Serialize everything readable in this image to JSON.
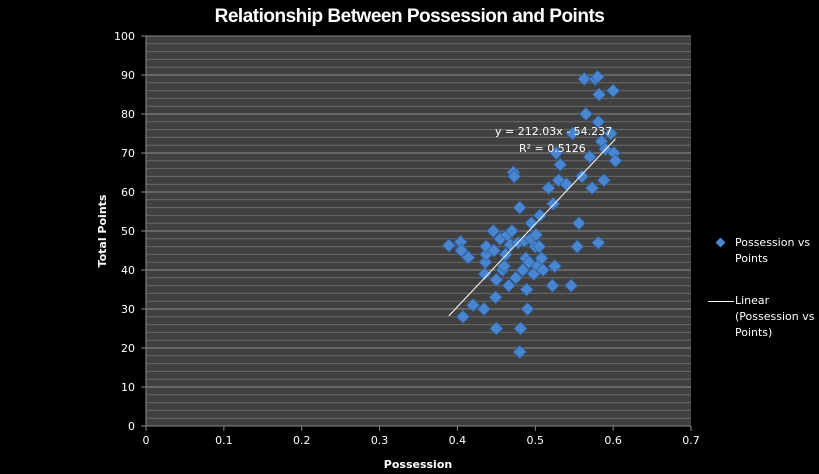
{
  "chart_data": {
    "type": "scatter",
    "title": "Relationship Between Possession and Points",
    "xlabel": "Possession",
    "ylabel": "Total Points",
    "xlim": [
      0,
      0.7
    ],
    "ylim": [
      0,
      100
    ],
    "x_ticks": [
      "0",
      "0.1",
      "0.2",
      "0.3",
      "0.4",
      "0.5",
      "0.6",
      "0.7"
    ],
    "y_ticks": [
      "0",
      "10",
      "20",
      "30",
      "40",
      "50",
      "60",
      "70",
      "80",
      "90",
      "100"
    ],
    "grid": {
      "major_y": 10,
      "minor_y": 2
    },
    "legend_position": "right",
    "series": [
      {
        "name": "Possession vs Points",
        "marker": "diamond",
        "color": "#4a86d0",
        "points": [
          [
            0.389,
            46.3
          ],
          [
            0.404,
            47.2
          ],
          [
            0.405,
            45.0
          ],
          [
            0.414,
            43.2
          ],
          [
            0.407,
            28.0
          ],
          [
            0.42,
            31.0
          ],
          [
            0.434,
            30.0
          ],
          [
            0.435,
            39.0
          ],
          [
            0.436,
            42.0
          ],
          [
            0.437,
            44.0
          ],
          [
            0.437,
            46.0
          ],
          [
            0.446,
            50.0
          ],
          [
            0.447,
            45.0
          ],
          [
            0.449,
            33.0
          ],
          [
            0.45,
            25.0
          ],
          [
            0.45,
            37.5
          ],
          [
            0.455,
            48.0
          ],
          [
            0.458,
            40.0
          ],
          [
            0.46,
            41.0
          ],
          [
            0.462,
            44.0
          ],
          [
            0.464,
            49.0
          ],
          [
            0.466,
            36.0
          ],
          [
            0.468,
            46.5
          ],
          [
            0.47,
            50.0
          ],
          [
            0.472,
            65.0
          ],
          [
            0.473,
            64.0
          ],
          [
            0.475,
            38.0
          ],
          [
            0.478,
            47.0
          ],
          [
            0.48,
            56.0
          ],
          [
            0.481,
            25.0
          ],
          [
            0.48,
            19.0
          ],
          [
            0.484,
            40.0
          ],
          [
            0.486,
            47.5
          ],
          [
            0.488,
            43.0
          ],
          [
            0.489,
            35.0
          ],
          [
            0.49,
            30.0
          ],
          [
            0.492,
            42.0
          ],
          [
            0.494,
            48.0
          ],
          [
            0.495,
            52.0
          ],
          [
            0.498,
            39.0
          ],
          [
            0.5,
            46.0
          ],
          [
            0.501,
            49.0
          ],
          [
            0.503,
            41.0
          ],
          [
            0.505,
            46.0
          ],
          [
            0.506,
            54.0
          ],
          [
            0.508,
            43.0
          ],
          [
            0.51,
            40.0
          ],
          [
            0.517,
            61.0
          ],
          [
            0.522,
            36.0
          ],
          [
            0.523,
            57.0
          ],
          [
            0.525,
            41.0
          ],
          [
            0.527,
            70.0
          ],
          [
            0.53,
            63.0
          ],
          [
            0.532,
            67.0
          ],
          [
            0.54,
            62.0
          ],
          [
            0.546,
            36.0
          ],
          [
            0.548,
            75.0
          ],
          [
            0.554,
            46.0
          ],
          [
            0.556,
            52.0
          ],
          [
            0.56,
            64.0
          ],
          [
            0.563,
            89.0
          ],
          [
            0.565,
            80.0
          ],
          [
            0.57,
            69.0
          ],
          [
            0.573,
            61.0
          ],
          [
            0.577,
            89.0
          ],
          [
            0.58,
            89.5
          ],
          [
            0.581,
            47.0
          ],
          [
            0.581,
            78.0
          ],
          [
            0.582,
            85.0
          ],
          [
            0.585,
            73.0
          ],
          [
            0.588,
            63.0
          ],
          [
            0.59,
            71.0
          ],
          [
            0.597,
            75.0
          ],
          [
            0.6,
            86.0
          ],
          [
            0.601,
            70.0
          ],
          [
            0.603,
            68.0
          ]
        ]
      },
      {
        "name": "Linear (Possession vs Points)",
        "type": "line",
        "color": "#ffffff",
        "slope": 212.03,
        "intercept": -54.237,
        "x_range": [
          0.389,
          0.603
        ]
      }
    ],
    "annotations": {
      "equation": "y = 212.03x - 54.237",
      "r_squared": "R² = 0.5126"
    }
  },
  "legend": {
    "series_label": "Possession vs Points",
    "trend_label": "Linear (Possession vs Points)"
  }
}
